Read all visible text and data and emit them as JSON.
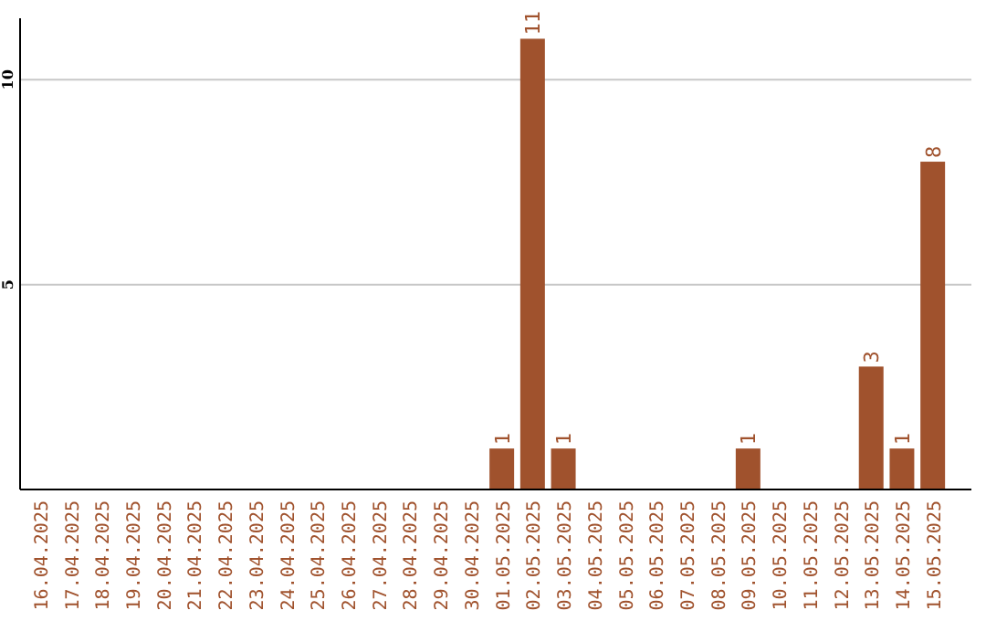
{
  "chart_data": {
    "type": "bar",
    "categories": [
      "16.04.2025",
      "17.04.2025",
      "18.04.2025",
      "19.04.2025",
      "20.04.2025",
      "21.04.2025",
      "22.04.2025",
      "23.04.2025",
      "24.04.2025",
      "25.04.2025",
      "26.04.2025",
      "27.04.2025",
      "28.04.2025",
      "29.04.2025",
      "30.04.2025",
      "01.05.2025",
      "02.05.2025",
      "03.05.2025",
      "04.05.2025",
      "05.05.2025",
      "06.05.2025",
      "07.05.2025",
      "08.05.2025",
      "09.05.2025",
      "10.05.2025",
      "11.05.2025",
      "12.05.2025",
      "13.05.2025",
      "14.05.2025",
      "15.05.2025"
    ],
    "values": [
      0,
      0,
      0,
      0,
      0,
      0,
      0,
      0,
      0,
      0,
      0,
      0,
      0,
      0,
      0,
      1,
      11,
      1,
      0,
      0,
      0,
      0,
      0,
      1,
      0,
      0,
      0,
      3,
      1,
      8
    ],
    "value_labels": [
      null,
      null,
      null,
      null,
      null,
      null,
      null,
      null,
      null,
      null,
      null,
      null,
      null,
      null,
      null,
      "1",
      "11",
      "1",
      null,
      null,
      null,
      null,
      null,
      "1",
      null,
      null,
      null,
      "3",
      "1",
      "8"
    ],
    "color": "#a0522d",
    "ylim": [
      0,
      11.5
    ],
    "yticks": [
      5,
      10
    ],
    "grid": "y"
  }
}
